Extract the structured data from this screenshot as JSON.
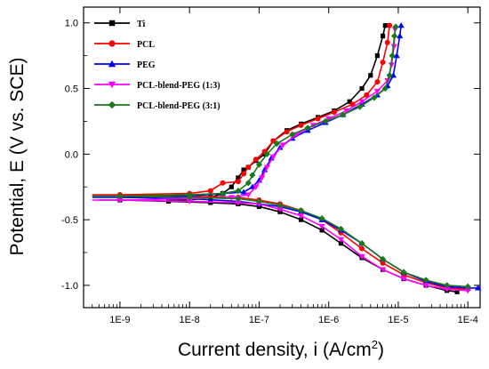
{
  "chart_data": {
    "type": "line",
    "title": "",
    "xlabel": "Current density, i (A/cm",
    "xlabel_sup": "2",
    "xlabel_end": ")",
    "ylabel": "Potential, E (V vs. SCE)",
    "xscale": "log",
    "xlim": [
      3e-10,
      0.00015
    ],
    "ylim": [
      -1.17,
      1.12
    ],
    "x_ticks": [
      {
        "value": 1e-09,
        "label": "1E-9"
      },
      {
        "value": 1e-08,
        "label": "1E-8"
      },
      {
        "value": 1e-07,
        "label": "1E-7"
      },
      {
        "value": 1e-06,
        "label": "1E-6"
      },
      {
        "value": 1e-05,
        "label": "1E-5"
      },
      {
        "value": 0.0001,
        "label": "1E-4"
      }
    ],
    "y_ticks": [
      {
        "value": 1.0,
        "label": "1.0"
      },
      {
        "value": 0.5,
        "label": "0.5"
      },
      {
        "value": 0.0,
        "label": "0.0"
      },
      {
        "value": -0.5,
        "label": "-0.5"
      },
      {
        "value": -1.0,
        "label": "-1.0"
      }
    ],
    "grid": false,
    "legend_position": "top-left",
    "series": [
      {
        "name": "Ti",
        "color": "#000000",
        "marker": "square",
        "anodic": [
          [
            5e-09,
            -0.35
          ],
          [
            1e-08,
            -0.35
          ],
          [
            2e-08,
            -0.33
          ],
          [
            3e-08,
            -0.3
          ],
          [
            4e-08,
            -0.25
          ],
          [
            5e-08,
            -0.18
          ],
          [
            6e-08,
            -0.12
          ],
          [
            7e-08,
            -0.1
          ],
          [
            9e-08,
            -0.05
          ],
          [
            1.2e-07,
            0.0
          ],
          [
            1.6e-07,
            0.1
          ],
          [
            2.5e-07,
            0.18
          ],
          [
            4e-07,
            0.23
          ],
          [
            7e-07,
            0.28
          ],
          [
            1.2e-06,
            0.33
          ],
          [
            2e-06,
            0.4
          ],
          [
            3e-06,
            0.5
          ],
          [
            4e-06,
            0.6
          ],
          [
            5e-06,
            0.75
          ],
          [
            6e-06,
            0.9
          ],
          [
            6.5e-06,
            0.98
          ]
        ],
        "cathodic": [
          [
            5e-10,
            -0.35
          ],
          [
            1e-09,
            -0.35
          ],
          [
            5e-09,
            -0.36
          ],
          [
            2e-08,
            -0.37
          ],
          [
            5e-08,
            -0.38
          ],
          [
            1e-07,
            -0.4
          ],
          [
            2e-07,
            -0.44
          ],
          [
            4e-07,
            -0.5
          ],
          [
            8e-07,
            -0.58
          ],
          [
            1.5e-06,
            -0.68
          ],
          [
            3e-06,
            -0.79
          ],
          [
            6e-06,
            -0.88
          ],
          [
            1.2e-05,
            -0.95
          ],
          [
            2.5e-05,
            -1.0
          ],
          [
            5e-05,
            -1.04
          ],
          [
            7e-05,
            -1.05
          ]
        ]
      },
      {
        "name": "PCL",
        "color": "#ff0000",
        "marker": "circle",
        "anodic": [
          [
            1e-09,
            -0.31
          ],
          [
            1e-08,
            -0.3
          ],
          [
            2e-08,
            -0.28
          ],
          [
            3e-08,
            -0.22
          ],
          [
            5e-08,
            -0.21
          ],
          [
            6e-08,
            -0.15
          ],
          [
            7e-08,
            -0.1
          ],
          [
            9e-08,
            -0.04
          ],
          [
            1.2e-07,
            0.02
          ],
          [
            1.6e-07,
            0.1
          ],
          [
            2.5e-07,
            0.17
          ],
          [
            4e-07,
            0.22
          ],
          [
            7e-07,
            0.27
          ],
          [
            1.2e-06,
            0.32
          ],
          [
            2.2e-06,
            0.38
          ],
          [
            3.5e-06,
            0.45
          ],
          [
            5e-06,
            0.55
          ],
          [
            6e-06,
            0.7
          ],
          [
            7e-06,
            0.85
          ],
          [
            7.5e-06,
            0.98
          ]
        ],
        "cathodic": [
          [
            4e-10,
            -0.31
          ],
          [
            1e-09,
            -0.31
          ],
          [
            1e-08,
            -0.32
          ],
          [
            5e-08,
            -0.33
          ],
          [
            1e-07,
            -0.35
          ],
          [
            2e-07,
            -0.38
          ],
          [
            4e-07,
            -0.43
          ],
          [
            8e-07,
            -0.5
          ],
          [
            1.5e-06,
            -0.6
          ],
          [
            3e-06,
            -0.72
          ],
          [
            6e-06,
            -0.83
          ],
          [
            1.2e-05,
            -0.92
          ],
          [
            2.5e-05,
            -0.98
          ],
          [
            5e-05,
            -1.02
          ],
          [
            0.0001,
            -1.03
          ]
        ]
      },
      {
        "name": "PEG",
        "color": "#0000ff",
        "marker": "triangle",
        "anodic": [
          [
            1e-09,
            -0.33
          ],
          [
            1e-08,
            -0.32
          ],
          [
            3e-08,
            -0.3
          ],
          [
            6e-08,
            -0.29
          ],
          [
            8e-08,
            -0.25
          ],
          [
            1e-07,
            -0.2
          ],
          [
            1.2e-07,
            -0.12
          ],
          [
            1.5e-07,
            -0.03
          ],
          [
            2e-07,
            0.05
          ],
          [
            3e-07,
            0.12
          ],
          [
            5e-07,
            0.18
          ],
          [
            9e-07,
            0.24
          ],
          [
            1.6e-06,
            0.3
          ],
          [
            3e-06,
            0.38
          ],
          [
            5e-06,
            0.45
          ],
          [
            7e-06,
            0.52
          ],
          [
            8.5e-06,
            0.6
          ],
          [
            9.5e-06,
            0.75
          ],
          [
            1.05e-05,
            0.9
          ],
          [
            1.1e-05,
            0.98
          ]
        ],
        "cathodic": [
          [
            4e-10,
            -0.33
          ],
          [
            1e-09,
            -0.33
          ],
          [
            1e-08,
            -0.34
          ],
          [
            5e-08,
            -0.36
          ],
          [
            1e-07,
            -0.38
          ],
          [
            2e-07,
            -0.4
          ],
          [
            4e-07,
            -0.44
          ],
          [
            8e-07,
            -0.5
          ],
          [
            1.5e-06,
            -0.58
          ],
          [
            3e-06,
            -0.68
          ],
          [
            6e-06,
            -0.8
          ],
          [
            1.2e-05,
            -0.9
          ],
          [
            2.5e-05,
            -0.97
          ],
          [
            5e-05,
            -1.01
          ],
          [
            0.0001,
            -1.02
          ],
          [
            0.00014,
            -1.02
          ]
        ]
      },
      {
        "name": "PCL-blend-PEG (1:3)",
        "color": "#ff00ff",
        "marker": "triangle-down",
        "anodic": [
          [
            1e-09,
            -0.35
          ],
          [
            1e-08,
            -0.34
          ],
          [
            4e-08,
            -0.33
          ],
          [
            7e-08,
            -0.31
          ],
          [
            9e-08,
            -0.25
          ],
          [
            1.1e-07,
            -0.18
          ],
          [
            1.3e-07,
            -0.1
          ],
          [
            1.6e-07,
            -0.02
          ],
          [
            2.2e-07,
            0.07
          ],
          [
            3.5e-07,
            0.15
          ],
          [
            6e-07,
            0.22
          ],
          [
            1e-06,
            0.27
          ],
          [
            1.8e-06,
            0.33
          ],
          [
            3e-06,
            0.4
          ],
          [
            5e-06,
            0.48
          ],
          [
            7e-06,
            0.56
          ],
          [
            8e-06,
            0.68
          ],
          [
            8.7e-06,
            0.82
          ],
          [
            9e-06,
            0.95
          ]
        ],
        "cathodic": [
          [
            4e-10,
            -0.35
          ],
          [
            1e-09,
            -0.35
          ],
          [
            1e-08,
            -0.36
          ],
          [
            5e-08,
            -0.37
          ],
          [
            1e-07,
            -0.38
          ],
          [
            2e-07,
            -0.42
          ],
          [
            4e-07,
            -0.47
          ],
          [
            8e-07,
            -0.55
          ],
          [
            1.5e-06,
            -0.65
          ],
          [
            3e-06,
            -0.78
          ],
          [
            6e-06,
            -0.88
          ],
          [
            1.2e-05,
            -0.95
          ],
          [
            2.5e-05,
            -1.0
          ],
          [
            5e-05,
            -1.03
          ],
          [
            0.0001,
            -1.04
          ]
        ]
      },
      {
        "name": "PCL-blend-PEG (3:1)",
        "color": "#1a7a1a",
        "marker": "diamond",
        "anodic": [
          [
            1e-09,
            -0.32
          ],
          [
            1e-08,
            -0.31
          ],
          [
            3e-08,
            -0.3
          ],
          [
            5e-08,
            -0.28
          ],
          [
            7e-08,
            -0.22
          ],
          [
            8e-08,
            -0.16
          ],
          [
            1e-07,
            -0.08
          ],
          [
            1.3e-07,
            0.0
          ],
          [
            1.8e-07,
            0.08
          ],
          [
            3e-07,
            0.15
          ],
          [
            5e-07,
            0.2
          ],
          [
            9e-07,
            0.25
          ],
          [
            1.6e-06,
            0.3
          ],
          [
            2.8e-06,
            0.36
          ],
          [
            4.5e-06,
            0.43
          ],
          [
            6.5e-06,
            0.5
          ],
          [
            7.5e-06,
            0.6
          ],
          [
            8.2e-06,
            0.75
          ],
          [
            8.8e-06,
            0.9
          ],
          [
            9.2e-06,
            0.97
          ]
        ],
        "cathodic": [
          [
            4e-10,
            -0.32
          ],
          [
            1e-09,
            -0.32
          ],
          [
            1e-08,
            -0.33
          ],
          [
            5e-08,
            -0.34
          ],
          [
            1e-07,
            -0.36
          ],
          [
            2e-07,
            -0.39
          ],
          [
            4e-07,
            -0.43
          ],
          [
            8e-07,
            -0.49
          ],
          [
            1.5e-06,
            -0.57
          ],
          [
            3e-06,
            -0.68
          ],
          [
            6e-06,
            -0.8
          ],
          [
            1.2e-05,
            -0.9
          ],
          [
            2.5e-05,
            -0.96
          ],
          [
            5e-05,
            -1.0
          ],
          [
            0.0001,
            -1.01
          ]
        ]
      }
    ]
  }
}
